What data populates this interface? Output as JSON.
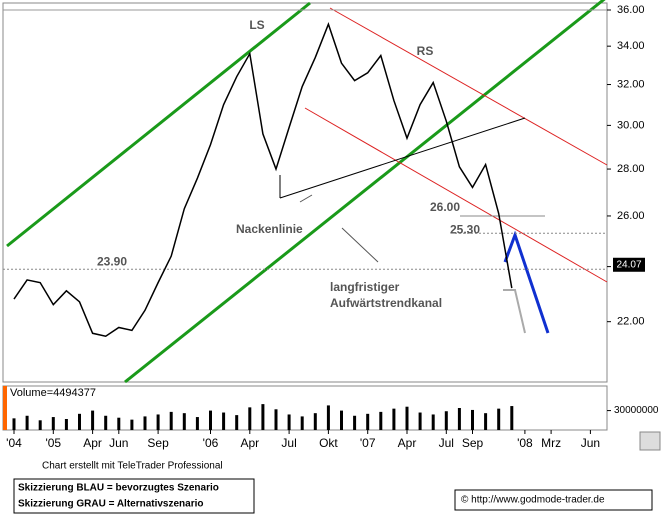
{
  "chart_data": [
    {
      "type": "line",
      "categories": [
        "'04",
        null,
        null,
        "'05",
        null,
        null,
        "Apr",
        null,
        "Jun",
        null,
        null,
        "Sep",
        null,
        null,
        null,
        "'06",
        null,
        null,
        "Apr",
        null,
        null,
        "Jul",
        null,
        null,
        "Okt",
        null,
        null,
        "'07",
        null,
        null,
        "Apr",
        null,
        null,
        "Jul",
        null,
        "Sep",
        null,
        null,
        null,
        "'08",
        null,
        "Mrz",
        null,
        null,
        "Jun"
      ],
      "values": [
        22.8,
        23.5,
        23.4,
        22.6,
        23.1,
        22.7,
        21.6,
        21.5,
        21.8,
        21.7,
        22.4,
        23.4,
        24.4,
        26.3,
        27.6,
        29.1,
        31.0,
        32.4,
        33.6,
        29.6,
        28.0,
        29.9,
        31.9,
        33.4,
        35.2,
        33.1,
        32.2,
        32.6,
        33.5,
        31.2,
        29.4,
        31.0,
        32.1,
        30.2,
        28.1,
        27.2,
        28.2,
        26.1,
        23.2,
        null,
        null,
        null,
        null,
        null,
        null
      ],
      "color": "#000000",
      "log_scale": true,
      "ylim": [
        20,
        36.4
      ],
      "yticks": [
        {
          "value": 22,
          "label": "22.00"
        },
        {
          "value": 24,
          "label": "24.00"
        },
        {
          "value": 26,
          "label": "26.00"
        },
        {
          "value": 28,
          "label": "28.00"
        },
        {
          "value": 30,
          "label": "30.00"
        },
        {
          "value": 32,
          "label": "32.00"
        },
        {
          "value": 34,
          "label": "34.00"
        },
        {
          "value": 36,
          "label": "36.00"
        }
      ],
      "levels": [
        {
          "value": 23.9,
          "label": "23.90"
        },
        {
          "value": 26,
          "label": "26.00"
        },
        {
          "value": 25.3,
          "label": "25.30"
        }
      ],
      "last_price": 24.07,
      "annotations": {
        "left_shoulder": "LS",
        "right_shoulder": "RS",
        "neckline": "Nackenlinie",
        "channel_line1": "langfristiger",
        "channel_line2": "Aufwärtstrendkanal"
      }
    },
    {
      "type": "bar",
      "title": "Volume=4494377",
      "values": [
        18000000,
        22000000,
        15000000,
        20000000,
        17000000,
        25000000,
        30000000,
        22000000,
        19000000,
        16000000,
        21000000,
        24000000,
        28000000,
        26000000,
        20000000,
        30000000,
        27000000,
        23000000,
        35000000,
        40000000,
        32000000,
        24000000,
        21000000,
        26000000,
        38000000,
        30000000,
        22000000,
        25000000,
        28000000,
        33000000,
        36000000,
        27000000,
        24000000,
        29000000,
        34000000,
        31000000,
        26000000,
        33000000,
        37000000,
        null,
        null,
        null,
        null,
        null,
        null
      ],
      "color": "#000000",
      "ylim": [
        0,
        68000000
      ],
      "yticks": [
        30000000
      ]
    }
  ],
  "footer": {
    "credit": "Chart erstellt mit TeleTrader Professional",
    "legend_blue": "Skizzierung BLAU = bevorzugtes Szenario",
    "legend_gray": "Skizzierung GRAU = Alternativszenario",
    "source": "© http://www.godmode-trader.de"
  }
}
